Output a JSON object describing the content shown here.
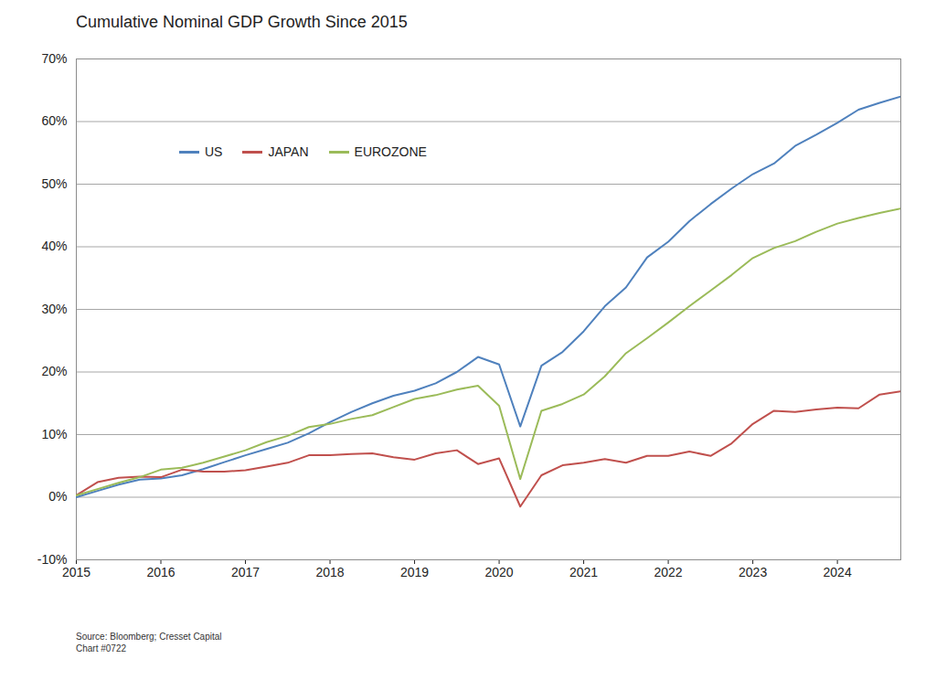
{
  "chart_data": {
    "type": "line",
    "title": "Cumulative Nominal GDP Growth Since 2015",
    "caption": [
      "Source: Bloomberg; Cresset Capital",
      "Chart #0722"
    ],
    "x": [
      2015,
      2015.25,
      2015.5,
      2015.75,
      2016,
      2016.25,
      2016.5,
      2016.75,
      2017,
      2017.25,
      2017.5,
      2017.75,
      2018,
      2018.25,
      2018.5,
      2018.75,
      2019,
      2019.25,
      2019.5,
      2019.75,
      2020,
      2020.25,
      2020.5,
      2020.75,
      2021,
      2021.25,
      2021.5,
      2021.75,
      2022,
      2022.25,
      2022.5,
      2022.75,
      2023,
      2023.25,
      2023.5,
      2023.75,
      2024,
      2024.25,
      2024.5,
      2024.75
    ],
    "series": [
      {
        "name": "US",
        "color": "#4f81bd",
        "values": [
          0,
          1.0,
          2.0,
          2.8,
          3.0,
          3.5,
          4.5,
          5.6,
          6.7,
          7.7,
          8.7,
          10.2,
          12.0,
          13.6,
          15.0,
          16.2,
          17.0,
          18.2,
          20.0,
          22.4,
          21.2,
          11.3,
          21.0,
          23.2,
          26.5,
          30.5,
          33.5,
          38.3,
          40.8,
          44.1,
          46.8,
          49.3,
          51.6,
          53.3,
          56.1,
          57.9,
          59.8,
          61.9,
          63.0,
          64.0
        ]
      },
      {
        "name": "JAPAN",
        "color": "#c0504d",
        "values": [
          0.3,
          2.4,
          3.1,
          3.3,
          3.2,
          4.4,
          4.1,
          4.1,
          4.3,
          4.9,
          5.5,
          6.7,
          6.7,
          6.9,
          7.0,
          6.4,
          6.0,
          7.0,
          7.5,
          5.3,
          6.2,
          -1.5,
          3.5,
          5.1,
          5.5,
          6.1,
          5.5,
          6.6,
          6.6,
          7.3,
          6.6,
          8.6,
          11.7,
          13.8,
          13.6,
          14.0,
          14.3,
          14.2,
          16.4,
          16.9
        ]
      },
      {
        "name": "EUROZONE",
        "color": "#9bbb59",
        "values": [
          0.3,
          1.3,
          2.3,
          3.2,
          4.4,
          4.7,
          5.5,
          6.5,
          7.5,
          8.8,
          9.8,
          11.2,
          11.7,
          12.5,
          13.1,
          14.4,
          15.7,
          16.3,
          17.2,
          17.8,
          14.6,
          2.9,
          13.8,
          14.9,
          16.4,
          19.3,
          23.0,
          25.4,
          27.9,
          30.5,
          33.0,
          35.5,
          38.2,
          39.8,
          40.9,
          42.4,
          43.7,
          44.6,
          45.4,
          46.1
        ]
      }
    ],
    "xlim": [
      2015,
      2024.75
    ],
    "xticks": [
      2015,
      2016,
      2017,
      2018,
      2019,
      2020,
      2021,
      2022,
      2023,
      2024
    ],
    "ylim": [
      -10,
      70
    ],
    "yticks": [
      {
        "value": -10,
        "label": "-10%"
      },
      {
        "value": 0,
        "label": "0%"
      },
      {
        "value": 10,
        "label": "10%"
      },
      {
        "value": 20,
        "label": "20%"
      },
      {
        "value": 30,
        "label": "30%"
      },
      {
        "value": 40,
        "label": "40%"
      },
      {
        "value": 50,
        "label": "50%"
      },
      {
        "value": 60,
        "label": "60%"
      },
      {
        "value": 70,
        "label": "70%"
      }
    ],
    "grid": true,
    "legend": "upper left"
  }
}
